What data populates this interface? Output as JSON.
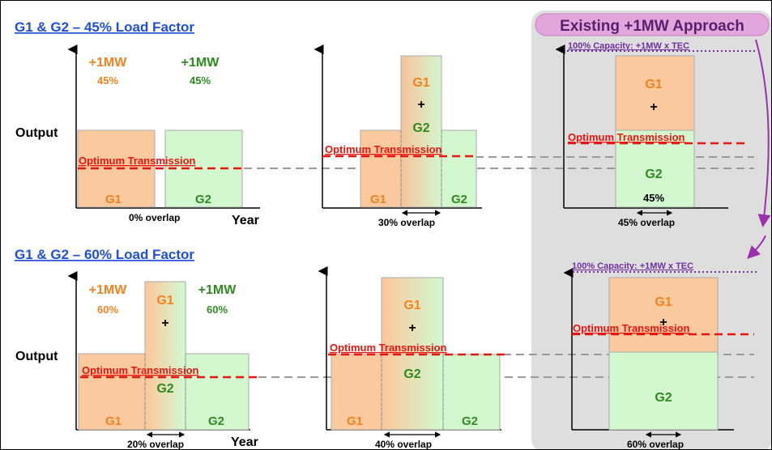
{
  "sections": {
    "top_title": "G1 & G2 – 45% Load Factor",
    "bottom_title": "G1 & G2 – 60% Load Factor",
    "existing_title": "Existing +1MW Approach"
  },
  "labels": {
    "output": "Output",
    "year": "Year",
    "g1": "G1",
    "g2": "G2",
    "plus": "+",
    "plus_1mw": "+1MW",
    "pct_45": "45%",
    "pct_60": "60%",
    "optimum_transmission": "Optimum Transmission",
    "capacity_note": "100% Capacity: +1MW x TEC"
  },
  "overlaps": {
    "top_0": "0% overlap",
    "top_30": "30% overlap",
    "top_45": "45% overlap",
    "bottom_20": "20% overlap",
    "bottom_40": "40% overlap",
    "bottom_60": "60% overlap"
  },
  "colors": {
    "g1_fill": "#fbc99e",
    "g2_fill": "#d3f7cf",
    "g1_text": "#f58220",
    "g2_text": "#2e8b1f",
    "transmission_line": "#e8150f",
    "reference_line": "#9a9a9a",
    "title_link": "#1f4fd6",
    "existing_panel": "#dedede",
    "existing_badge": "#e3a6dc",
    "capacity_note": "#7030a0",
    "panel_arrow": "#9b2fae"
  }
}
